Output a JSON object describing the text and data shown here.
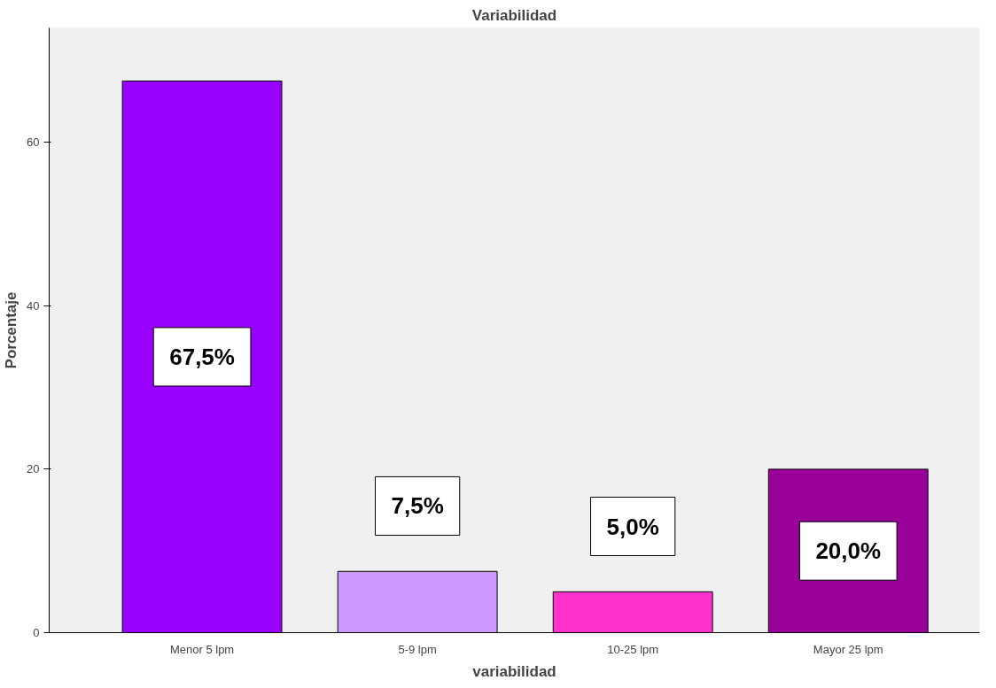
{
  "chart_data": {
    "type": "bar",
    "title": "Variabilidad",
    "xlabel": "variabilidad",
    "ylabel": "Porcentaje",
    "categories": [
      "Menor 5 lpm",
      "5-9 lpm",
      "10-25 lpm",
      "Mayor 25 lpm"
    ],
    "values": [
      67.5,
      7.5,
      5.0,
      20.0
    ],
    "colors": [
      "#9900ff",
      "#cc99ff",
      "#ff33cc",
      "#990099"
    ],
    "value_labels": [
      "67,5%",
      "7,5%",
      "5,0%",
      "20,0%"
    ],
    "ylim": [
      0,
      74
    ],
    "yticks": [
      0,
      20,
      40,
      60
    ],
    "grid": false
  }
}
